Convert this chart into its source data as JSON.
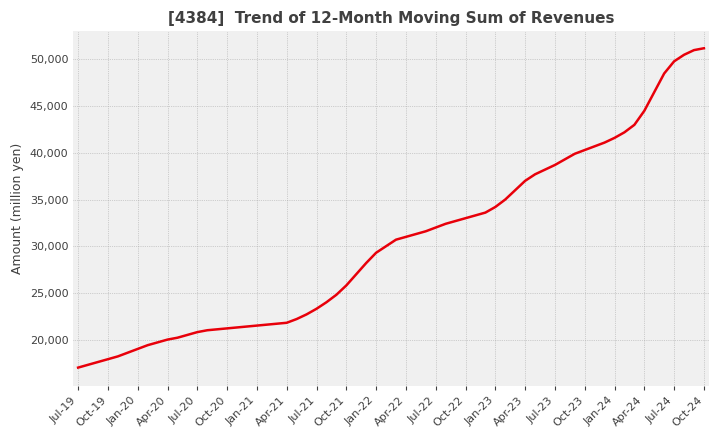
{
  "title": "[4384]  Trend of 12-Month Moving Sum of Revenues",
  "ylabel": "Amount (million yen)",
  "line_color": "#e8000a",
  "background_color": "#ffffff",
  "plot_bg_color": "#f0f0f0",
  "grid_color": "#aaaaaa",
  "title_color": "#404040",
  "ylim": [
    15000,
    53000
  ],
  "yticks": [
    20000,
    25000,
    30000,
    35000,
    40000,
    45000,
    50000
  ],
  "values": [
    17000,
    17300,
    17600,
    17900,
    18200,
    18600,
    19000,
    19400,
    19700,
    20000,
    20200,
    20500,
    20800,
    21000,
    21100,
    21200,
    21300,
    21400,
    21500,
    21600,
    21700,
    21800,
    22200,
    22700,
    23300,
    24000,
    24800,
    25800,
    27000,
    28200,
    29300,
    30000,
    30700,
    31000,
    31300,
    31600,
    32000,
    32400,
    32700,
    33000,
    33300,
    33600,
    34200,
    35000,
    36000,
    37000,
    37700,
    38200,
    38700,
    39300,
    39900,
    40300,
    40700,
    41100,
    41600,
    42200,
    43000,
    44500,
    46500,
    48500,
    49800,
    50500,
    51000,
    51200
  ],
  "xtick_labels": [
    "Jul-19",
    "Oct-19",
    "Jan-20",
    "Apr-20",
    "Jul-20",
    "Oct-20",
    "Jan-21",
    "Apr-21",
    "Jul-21",
    "Oct-21",
    "Jan-22",
    "Apr-22",
    "Jul-22",
    "Oct-22",
    "Jan-23",
    "Apr-23",
    "Jul-23",
    "Oct-23",
    "Jan-24",
    "Apr-24",
    "Jul-24",
    "Oct-24"
  ],
  "xtick_positions": [
    0,
    3,
    6,
    9,
    12,
    15,
    18,
    21,
    24,
    27,
    30,
    33,
    36,
    39,
    42,
    45,
    48,
    51,
    54,
    57,
    60,
    63
  ],
  "line_width": 1.8,
  "title_fontsize": 11,
  "tick_fontsize": 8,
  "ylabel_fontsize": 9
}
